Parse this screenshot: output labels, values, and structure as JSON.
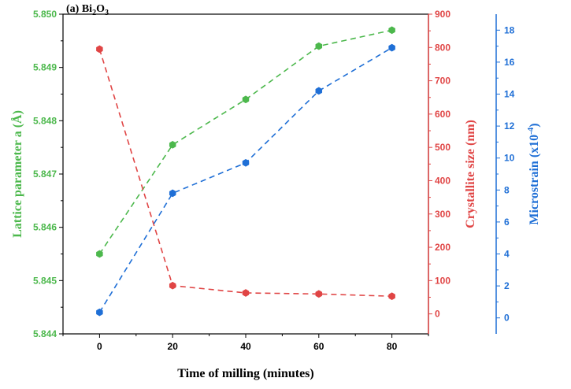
{
  "chart_data": {
    "type": "line",
    "title_prefix": "(a) Bi",
    "title_sub": "2",
    "title_mid": "O",
    "title_sub2": "3",
    "x": [
      0,
      20,
      40,
      60,
      80
    ],
    "x_ticks": [
      "0",
      "20",
      "40",
      "60",
      "80"
    ],
    "xlim": [
      -10,
      90
    ],
    "xlabel": "Time of milling (minutes)",
    "axes": {
      "left": {
        "label": "Lattice parameter a (Å)",
        "color": "#4cb84c",
        "ylim": [
          5.844,
          5.85
        ],
        "ticks": [
          "5.844",
          "5.845",
          "5.846",
          "5.847",
          "5.848",
          "5.849",
          "5.850"
        ]
      },
      "middle": {
        "label": "Crystallite size (nm)",
        "color": "#e04545",
        "ylim": [
          -60,
          900
        ],
        "ticks": [
          "0",
          "100",
          "200",
          "300",
          "400",
          "500",
          "600",
          "700",
          "800",
          "900"
        ]
      },
      "right": {
        "label_main": "Microstrain (x10",
        "label_sup": "-4",
        "label_end": ")",
        "color": "#1f6fd6",
        "ylim": [
          -1,
          19
        ],
        "ticks": [
          "0",
          "2",
          "4",
          "6",
          "8",
          "10",
          "12",
          "14",
          "16",
          "18"
        ]
      }
    },
    "series": [
      {
        "name": "Lattice parameter a",
        "axis": "left",
        "color": "#4cb84c",
        "values": [
          5.8455,
          5.84755,
          5.8484,
          5.8494,
          5.8497
        ]
      },
      {
        "name": "Crystallite size",
        "axis": "middle",
        "color": "#e04545",
        "values": [
          795,
          85,
          63,
          60,
          53
        ]
      },
      {
        "name": "Microstrain",
        "axis": "right",
        "color": "#1f6fd6",
        "values": [
          0.35,
          7.8,
          9.7,
          14.2,
          16.9
        ]
      }
    ]
  }
}
